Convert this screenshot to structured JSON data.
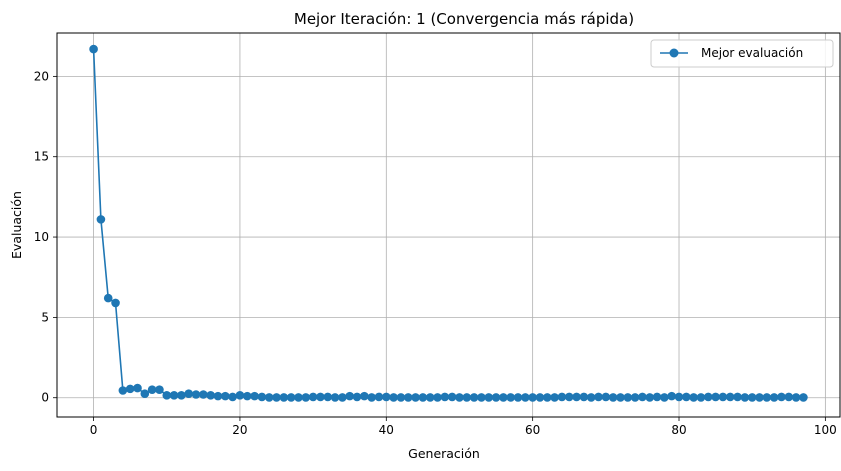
{
  "chart_data": {
    "type": "line",
    "title": "Mejor Iteración: 1 (Convergencia más rápida)",
    "xlabel": "Generación",
    "ylabel": "Evaluación",
    "xlim": [
      -5,
      102
    ],
    "ylim": [
      -1.2,
      22.7
    ],
    "xticks": [
      0,
      20,
      40,
      60,
      80,
      100
    ],
    "yticks": [
      0,
      5,
      10,
      15,
      20
    ],
    "grid": true,
    "legend_position": "top-right",
    "series": [
      {
        "name": "Mejor evaluación",
        "color": "#1f77b4",
        "marker": "circle",
        "x": [
          0,
          1,
          2,
          3,
          4,
          5,
          6,
          7,
          8,
          9,
          10,
          11,
          12,
          13,
          14,
          15,
          16,
          17,
          18,
          19,
          20,
          21,
          22,
          23,
          24,
          25,
          26,
          27,
          28,
          29,
          30,
          31,
          32,
          33,
          34,
          35,
          36,
          37,
          38,
          39,
          40,
          41,
          42,
          43,
          44,
          45,
          46,
          47,
          48,
          49,
          50,
          51,
          52,
          53,
          54,
          55,
          56,
          57,
          58,
          59,
          60,
          61,
          62,
          63,
          64,
          65,
          66,
          67,
          68,
          69,
          70,
          71,
          72,
          73,
          74,
          75,
          76,
          77,
          78,
          79,
          80,
          81,
          82,
          83,
          84,
          85,
          86,
          87,
          88,
          89,
          90,
          91,
          92,
          93,
          94,
          95,
          96,
          97
        ],
        "y": [
          21.7,
          11.1,
          6.2,
          5.9,
          0.45,
          0.55,
          0.6,
          0.25,
          0.5,
          0.5,
          0.15,
          0.15,
          0.15,
          0.25,
          0.2,
          0.2,
          0.15,
          0.1,
          0.1,
          0.05,
          0.15,
          0.1,
          0.1,
          0.05,
          0.02,
          0.02,
          0.02,
          0.02,
          0.02,
          0.02,
          0.05,
          0.05,
          0.05,
          0.02,
          0.02,
          0.1,
          0.05,
          0.1,
          0.02,
          0.05,
          0.05,
          0.02,
          0.02,
          0.02,
          0.02,
          0.02,
          0.02,
          0.02,
          0.05,
          0.05,
          0.02,
          0.02,
          0.02,
          0.02,
          0.02,
          0.02,
          0.02,
          0.02,
          0.02,
          0.02,
          0.02,
          0.02,
          0.02,
          0.02,
          0.05,
          0.05,
          0.05,
          0.05,
          0.02,
          0.05,
          0.05,
          0.02,
          0.02,
          0.02,
          0.02,
          0.05,
          0.02,
          0.05,
          0.02,
          0.1,
          0.05,
          0.05,
          0.02,
          0.02,
          0.05,
          0.05,
          0.05,
          0.05,
          0.05,
          0.02,
          0.02,
          0.02,
          0.02,
          0.02,
          0.05,
          0.05,
          0.02,
          0.02
        ]
      }
    ]
  }
}
